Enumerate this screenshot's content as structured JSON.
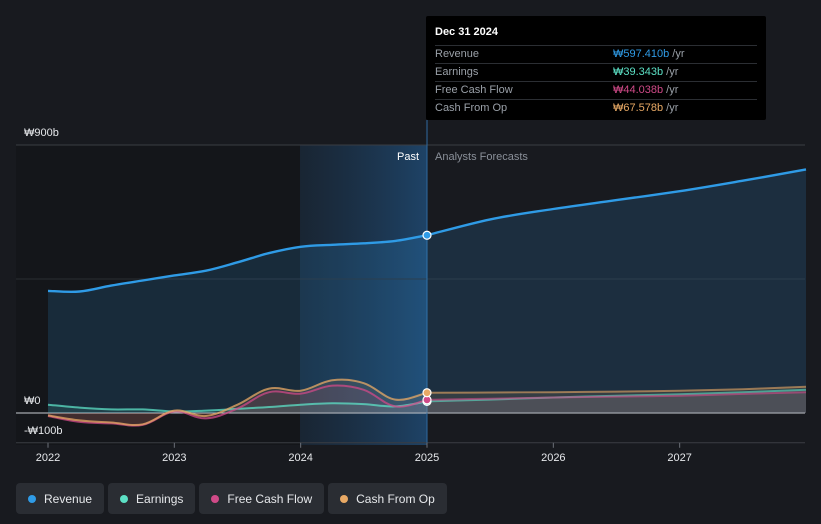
{
  "chart_data": {
    "type": "line",
    "currency_unit": "₩ billions",
    "y_ticks": [
      {
        "value": 900,
        "label": "₩900b"
      },
      {
        "value": 0,
        "label": "₩0"
      },
      {
        "value": -100,
        "label": "-₩100b"
      }
    ],
    "ylim": [
      -100,
      900
    ],
    "xlim": [
      2022.0,
      2028.0
    ],
    "x_ticks": [
      {
        "value": 2022,
        "label": "2022"
      },
      {
        "value": 2023,
        "label": "2023"
      },
      {
        "value": 2024,
        "label": "2024"
      },
      {
        "value": 2025,
        "label": "2025"
      },
      {
        "value": 2026,
        "label": "2026"
      },
      {
        "value": 2027,
        "label": "2027"
      }
    ],
    "divider_x": 2024.0,
    "divider_end_x": 2025.0,
    "past_label": "Past",
    "forecast_label": "Analysts Forecasts",
    "series": [
      {
        "name": "Revenue",
        "color": "#2f9be6",
        "past": [
          [
            2022.0,
            410
          ],
          [
            2022.25,
            408
          ],
          [
            2022.5,
            428
          ],
          [
            2022.75,
            445
          ],
          [
            2023.0,
            462
          ],
          [
            2023.25,
            478
          ],
          [
            2023.5,
            506
          ],
          [
            2023.75,
            537
          ],
          [
            2024.0,
            558
          ],
          [
            2024.25,
            565
          ],
          [
            2024.5,
            570
          ],
          [
            2024.75,
            578
          ],
          [
            2025.0,
            597
          ]
        ],
        "forecast": [
          [
            2025.0,
            597
          ],
          [
            2025.5,
            650
          ],
          [
            2026.0,
            685
          ],
          [
            2026.5,
            715
          ],
          [
            2027.0,
            745
          ],
          [
            2027.5,
            780
          ],
          [
            2028.0,
            818
          ]
        ]
      },
      {
        "name": "Earnings",
        "color": "#5ce0c5",
        "past": [
          [
            2022.0,
            28
          ],
          [
            2022.25,
            18
          ],
          [
            2022.5,
            12
          ],
          [
            2022.75,
            12
          ],
          [
            2023.0,
            5
          ],
          [
            2023.25,
            8
          ],
          [
            2023.5,
            14
          ],
          [
            2023.75,
            20
          ],
          [
            2024.0,
            28
          ],
          [
            2024.25,
            33
          ],
          [
            2024.5,
            30
          ],
          [
            2024.75,
            22
          ],
          [
            2025.0,
            39
          ]
        ],
        "forecast": [
          [
            2025.0,
            39
          ],
          [
            2025.5,
            45
          ],
          [
            2026.0,
            52
          ],
          [
            2026.5,
            58
          ],
          [
            2027.0,
            63
          ],
          [
            2027.5,
            70
          ],
          [
            2028.0,
            78
          ]
        ]
      },
      {
        "name": "Free Cash Flow",
        "color": "#d04a88",
        "past": [
          [
            2022.0,
            -10
          ],
          [
            2022.25,
            -30
          ],
          [
            2022.5,
            -35
          ],
          [
            2022.75,
            -40
          ],
          [
            2023.0,
            5
          ],
          [
            2023.25,
            -18
          ],
          [
            2023.5,
            15
          ],
          [
            2023.75,
            70
          ],
          [
            2024.0,
            65
          ],
          [
            2024.25,
            92
          ],
          [
            2024.5,
            78
          ],
          [
            2024.75,
            22
          ],
          [
            2025.0,
            44
          ]
        ],
        "forecast": [
          [
            2025.0,
            44
          ],
          [
            2025.5,
            48
          ],
          [
            2026.0,
            52
          ],
          [
            2026.5,
            55
          ],
          [
            2027.0,
            58
          ],
          [
            2027.5,
            64
          ],
          [
            2028.0,
            70
          ]
        ]
      },
      {
        "name": "Cash From Op",
        "color": "#e8a965",
        "past": [
          [
            2022.0,
            -8
          ],
          [
            2022.25,
            -25
          ],
          [
            2022.5,
            -32
          ],
          [
            2022.75,
            -38
          ],
          [
            2023.0,
            8
          ],
          [
            2023.25,
            -10
          ],
          [
            2023.5,
            28
          ],
          [
            2023.75,
            82
          ],
          [
            2024.0,
            75
          ],
          [
            2024.25,
            110
          ],
          [
            2024.5,
            100
          ],
          [
            2024.75,
            45
          ],
          [
            2025.0,
            68
          ]
        ],
        "forecast": [
          [
            2025.0,
            68
          ],
          [
            2025.5,
            69
          ],
          [
            2026.0,
            70
          ],
          [
            2026.5,
            72
          ],
          [
            2027.0,
            75
          ],
          [
            2027.5,
            80
          ],
          [
            2028.0,
            88
          ]
        ]
      }
    ]
  },
  "tooltip": {
    "date": "Dec 31 2024",
    "rows": [
      {
        "label": "Revenue",
        "value": "₩597.410b",
        "unit": "/yr",
        "color": "#2f9be6"
      },
      {
        "label": "Earnings",
        "value": "₩39.343b",
        "unit": "/yr",
        "color": "#5ce0c5"
      },
      {
        "label": "Free Cash Flow",
        "value": "₩44.038b",
        "unit": "/yr",
        "color": "#d04a88"
      },
      {
        "label": "Cash From Op",
        "value": "₩67.578b",
        "unit": "/yr",
        "color": "#e8a965"
      }
    ]
  },
  "legend": [
    {
      "label": "Revenue",
      "color": "#2f9be6"
    },
    {
      "label": "Earnings",
      "color": "#5ce0c5"
    },
    {
      "label": "Free Cash Flow",
      "color": "#d04a88"
    },
    {
      "label": "Cash From Op",
      "color": "#e8a965"
    }
  ]
}
